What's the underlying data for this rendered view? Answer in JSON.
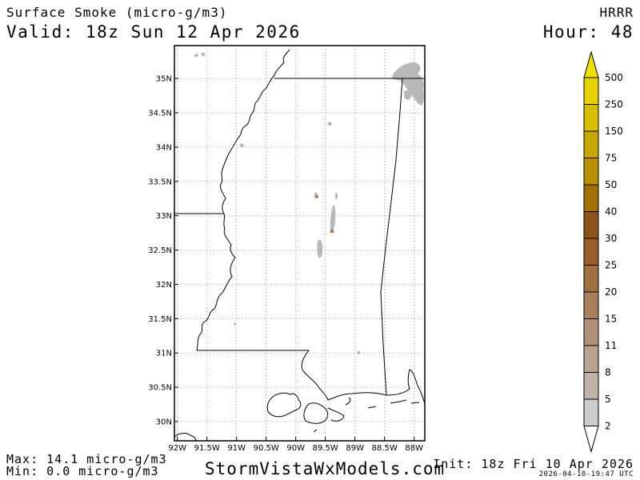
{
  "header": {
    "field_title": "Surface Smoke (micro-g/m3)",
    "valid_time": "Valid: 18z Sun 12 Apr 2026",
    "model": "HRRR",
    "forecast_hour": "Hour: 48"
  },
  "footer": {
    "max_text": "Max: 14.1 micro-g/m3",
    "min_text": "Min: 0.0 micro-g/m3",
    "site": "StormVistaWxModels.com",
    "init_text": "Init: 18z Fri 10 Apr 2026",
    "generated_text": "2026-04-10-19:47",
    "generated_tz": "UTC"
  },
  "map": {
    "lat_labels": [
      "35N",
      "34.5N",
      "34N",
      "33.5N",
      "33N",
      "32.5N",
      "32N",
      "31.5N",
      "31N",
      "30.5N",
      "30N"
    ],
    "lon_labels": [
      "92W",
      "91.5W",
      "91W",
      "90.5W",
      "90W",
      "89.5W",
      "89W",
      "88.5W",
      "88W"
    ],
    "lat_values": [
      35,
      34.5,
      34,
      33.5,
      33,
      32.5,
      32,
      31.5,
      31,
      30.5,
      30
    ],
    "lon_values": [
      -92,
      -91.5,
      -91,
      -90.5,
      -90,
      -89.5,
      -89,
      -88.5,
      -88
    ],
    "lat_range": [
      29.72,
      35.48
    ],
    "lon_range": [
      -92.05,
      -87.82
    ],
    "grid": "dotted",
    "boundary_color": "#000000",
    "smoke_color": "#b8b8b8"
  },
  "colorbar": {
    "levels": [
      "500",
      "250",
      "150",
      "75",
      "50",
      "40",
      "30",
      "25",
      "20",
      "15",
      "11",
      "8",
      "5",
      "2"
    ],
    "colors": [
      "#f0e000",
      "#e6d200",
      "#d8c000",
      "#c8a800",
      "#b89000",
      "#a07000",
      "#8c5418",
      "#985e28",
      "#a27040",
      "#a8805c",
      "#b09078",
      "#b8a490",
      "#c0b4a8",
      "#cccccc"
    ]
  }
}
